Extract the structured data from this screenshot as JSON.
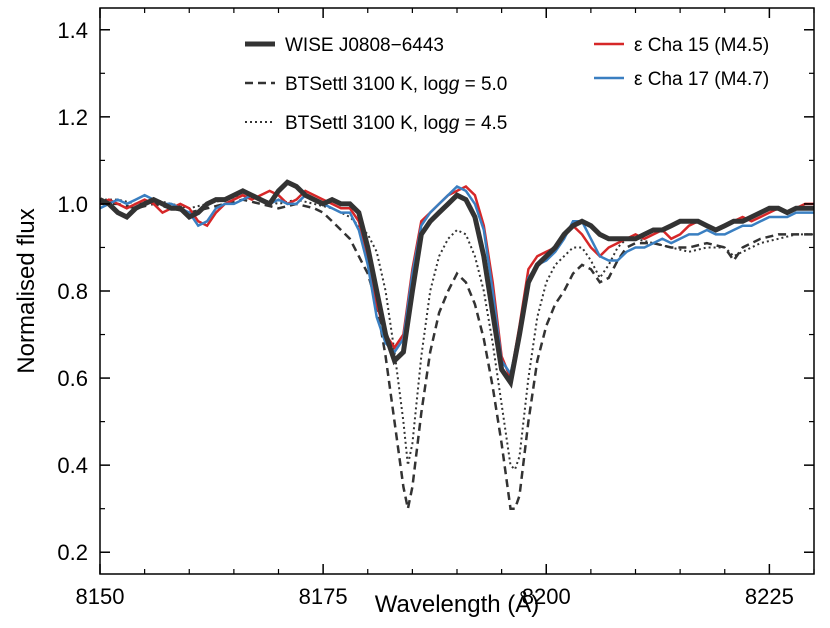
{
  "chart_data": {
    "type": "line",
    "title": "",
    "xlabel": "Wavelength (Å)",
    "ylabel": "Normalised flux",
    "xlim": [
      8150,
      8230
    ],
    "ylim": [
      0.15,
      1.45
    ],
    "xticks": [
      8150,
      8175,
      8200,
      8225
    ],
    "yticks": [
      0.2,
      0.4,
      0.6,
      0.8,
      1.0,
      1.2,
      1.4
    ],
    "xtick_labels": [
      "8150",
      "8175",
      "8200",
      "8225"
    ],
    "ytick_labels": [
      "0.2",
      "0.4",
      "0.6",
      "0.8",
      "1.0",
      "1.2",
      "1.4"
    ],
    "grid": false,
    "legend_placement": "top",
    "series": [
      {
        "name": "WISE J0808−6443",
        "color": "#333333",
        "style": "solid-thick",
        "x": [
          8150,
          8151,
          8152,
          8153,
          8154,
          8155,
          8156,
          8157,
          8158,
          8159,
          8160,
          8161,
          8162,
          8163,
          8164,
          8165,
          8166,
          8167,
          8168,
          8169,
          8170,
          8171,
          8172,
          8173,
          8174,
          8175,
          8176,
          8177,
          8178,
          8179,
          8180,
          8181,
          8182,
          8183,
          8184,
          8185,
          8186,
          8187,
          8188,
          8189,
          8190,
          8191,
          8192,
          8193,
          8194,
          8195,
          8196,
          8197,
          8198,
          8199,
          8200,
          8201,
          8202,
          8203,
          8204,
          8205,
          8206,
          8207,
          8208,
          8209,
          8210,
          8211,
          8212,
          8213,
          8214,
          8215,
          8216,
          8217,
          8218,
          8219,
          8220,
          8221,
          8222,
          8223,
          8224,
          8225,
          8226,
          8227,
          8228,
          8229,
          8230
        ],
        "y": [
          1.01,
          1.0,
          0.98,
          0.97,
          0.99,
          1.0,
          1.01,
          1.0,
          0.99,
          0.99,
          0.97,
          0.98,
          1.0,
          1.01,
          1.01,
          1.02,
          1.03,
          1.02,
          1.01,
          1.0,
          1.03,
          1.05,
          1.04,
          1.02,
          1.01,
          1.0,
          1.01,
          1.0,
          1.0,
          0.98,
          0.9,
          0.8,
          0.7,
          0.64,
          0.66,
          0.8,
          0.93,
          0.96,
          0.98,
          1.0,
          1.02,
          1.01,
          0.97,
          0.88,
          0.75,
          0.62,
          0.59,
          0.7,
          0.82,
          0.86,
          0.88,
          0.9,
          0.93,
          0.95,
          0.96,
          0.95,
          0.93,
          0.92,
          0.92,
          0.92,
          0.92,
          0.93,
          0.94,
          0.94,
          0.95,
          0.96,
          0.96,
          0.96,
          0.95,
          0.94,
          0.95,
          0.96,
          0.96,
          0.97,
          0.98,
          0.99,
          0.99,
          0.98,
          0.99,
          0.99,
          0.99
        ]
      },
      {
        "name": "BTSettl 3100 K, log g = 5.0",
        "color": "#333333",
        "style": "dashed",
        "x": [
          8150,
          8152,
          8154,
          8156,
          8158,
          8160,
          8162,
          8164,
          8166,
          8168,
          8170,
          8172,
          8174,
          8175,
          8176,
          8177,
          8178,
          8179,
          8180,
          8181,
          8182,
          8183,
          8184,
          8184.5,
          8185,
          8186,
          8187,
          8188,
          8189,
          8190,
          8191,
          8192,
          8193,
          8194,
          8195,
          8196,
          8196.5,
          8197,
          8198,
          8199,
          8200,
          8201,
          8202,
          8203,
          8204,
          8205,
          8206,
          8207,
          8208,
          8209,
          8210,
          8212,
          8214,
          8216,
          8218,
          8220,
          8221,
          8222,
          8224,
          8226,
          8228,
          8230
        ],
        "y": [
          1.0,
          1.0,
          0.99,
          1.0,
          0.99,
          0.98,
          0.99,
          1.0,
          1.01,
          1.0,
          0.99,
          1.0,
          0.99,
          0.98,
          0.96,
          0.94,
          0.92,
          0.88,
          0.84,
          0.77,
          0.65,
          0.5,
          0.35,
          0.3,
          0.35,
          0.52,
          0.66,
          0.75,
          0.8,
          0.84,
          0.82,
          0.77,
          0.69,
          0.58,
          0.45,
          0.3,
          0.3,
          0.33,
          0.5,
          0.64,
          0.72,
          0.77,
          0.8,
          0.84,
          0.86,
          0.85,
          0.82,
          0.83,
          0.87,
          0.9,
          0.91,
          0.91,
          0.9,
          0.9,
          0.91,
          0.9,
          0.87,
          0.9,
          0.92,
          0.93,
          0.93,
          0.93
        ]
      },
      {
        "name": "BTSettl 3100 K, log g = 4.5",
        "color": "#333333",
        "style": "dotted",
        "x": [
          8150,
          8152,
          8154,
          8156,
          8158,
          8160,
          8162,
          8164,
          8166,
          8168,
          8170,
          8172,
          8174,
          8176,
          8177,
          8178,
          8179,
          8180,
          8181,
          8182,
          8183,
          8184,
          8184.5,
          8185,
          8186,
          8187,
          8188,
          8189,
          8190,
          8191,
          8192,
          8193,
          8194,
          8195,
          8196,
          8196.5,
          8197,
          8198,
          8199,
          8200,
          8201,
          8202,
          8203,
          8204,
          8205,
          8206,
          8207,
          8208,
          8209,
          8210,
          8212,
          8214,
          8216,
          8218,
          8220,
          8221,
          8222,
          8224,
          8226,
          8228,
          8230
        ],
        "y": [
          1.01,
          1.01,
          1.0,
          1.01,
          1.0,
          0.99,
          1.0,
          1.01,
          1.02,
          1.01,
          1.0,
          1.01,
          1.0,
          0.99,
          0.98,
          0.97,
          0.95,
          0.93,
          0.89,
          0.8,
          0.66,
          0.5,
          0.4,
          0.45,
          0.65,
          0.8,
          0.88,
          0.92,
          0.94,
          0.93,
          0.88,
          0.8,
          0.68,
          0.54,
          0.4,
          0.39,
          0.42,
          0.6,
          0.74,
          0.82,
          0.86,
          0.88,
          0.9,
          0.9,
          0.87,
          0.83,
          0.86,
          0.9,
          0.92,
          0.92,
          0.91,
          0.9,
          0.89,
          0.9,
          0.9,
          0.88,
          0.89,
          0.91,
          0.92,
          0.93,
          0.93
        ]
      },
      {
        "name": "ε Cha 15 (M4.5)",
        "color": "#d62728",
        "style": "solid",
        "x": [
          8150,
          8151,
          8152,
          8153,
          8154,
          8155,
          8156,
          8157,
          8158,
          8159,
          8160,
          8161,
          8162,
          8163,
          8164,
          8165,
          8166,
          8167,
          8168,
          8169,
          8170,
          8171,
          8172,
          8173,
          8174,
          8175,
          8176,
          8177,
          8178,
          8179,
          8180,
          8181,
          8182,
          8183,
          8184,
          8185,
          8186,
          8187,
          8188,
          8189,
          8190,
          8191,
          8192,
          8193,
          8194,
          8195,
          8196,
          8197,
          8198,
          8199,
          8200,
          8201,
          8202,
          8203,
          8204,
          8205,
          8206,
          8207,
          8208,
          8209,
          8210,
          8211,
          8212,
          8213,
          8214,
          8215,
          8216,
          8217,
          8218,
          8219,
          8220,
          8221,
          8222,
          8223,
          8224,
          8225,
          8226,
          8227,
          8228,
          8229,
          8230
        ],
        "y": [
          1.0,
          1.01,
          1.0,
          0.99,
          1.0,
          1.01,
          1.0,
          0.98,
          0.99,
          1.0,
          0.99,
          0.96,
          0.95,
          0.98,
          1.0,
          1.01,
          1.02,
          1.01,
          1.02,
          1.03,
          1.02,
          1.0,
          1.01,
          1.03,
          1.02,
          1.01,
          1.0,
          0.99,
          0.99,
          0.96,
          0.88,
          0.77,
          0.7,
          0.67,
          0.7,
          0.85,
          0.96,
          0.98,
          1.0,
          1.02,
          1.03,
          1.04,
          1.02,
          0.95,
          0.82,
          0.65,
          0.6,
          0.72,
          0.85,
          0.88,
          0.89,
          0.9,
          0.93,
          0.95,
          0.93,
          0.9,
          0.88,
          0.9,
          0.91,
          0.92,
          0.93,
          0.92,
          0.93,
          0.94,
          0.92,
          0.93,
          0.95,
          0.96,
          0.95,
          0.94,
          0.95,
          0.96,
          0.97,
          0.96,
          0.97,
          0.98,
          0.99,
          0.98,
          0.99,
          1.0,
          1.0
        ]
      },
      {
        "name": "ε Cha 17 (M4.7)",
        "color": "#3a7fc1",
        "style": "solid",
        "x": [
          8150,
          8151,
          8152,
          8153,
          8154,
          8155,
          8156,
          8157,
          8158,
          8159,
          8160,
          8161,
          8162,
          8163,
          8164,
          8165,
          8166,
          8167,
          8168,
          8169,
          8170,
          8171,
          8172,
          8173,
          8174,
          8175,
          8176,
          8177,
          8178,
          8179,
          8180,
          8181,
          8182,
          8183,
          8184,
          8185,
          8186,
          8187,
          8188,
          8189,
          8190,
          8191,
          8192,
          8193,
          8194,
          8195,
          8196,
          8197,
          8198,
          8199,
          8200,
          8201,
          8202,
          8203,
          8204,
          8205,
          8206,
          8207,
          8208,
          8209,
          8210,
          8211,
          8212,
          8213,
          8214,
          8215,
          8216,
          8217,
          8218,
          8219,
          8220,
          8221,
          8222,
          8223,
          8224,
          8225,
          8226,
          8227,
          8228,
          8229,
          8230
        ],
        "y": [
          0.99,
          1.0,
          1.01,
          1.0,
          1.01,
          1.02,
          1.01,
          1.0,
          1.0,
          0.99,
          0.98,
          0.95,
          0.96,
          0.99,
          1.0,
          1.0,
          1.01,
          1.02,
          1.01,
          1.0,
          1.01,
          1.0,
          1.0,
          1.02,
          1.01,
          1.0,
          0.99,
          0.98,
          0.98,
          0.94,
          0.86,
          0.74,
          0.68,
          0.66,
          0.69,
          0.84,
          0.95,
          0.98,
          1.0,
          1.02,
          1.04,
          1.03,
          1.0,
          0.94,
          0.8,
          0.64,
          0.61,
          0.7,
          0.83,
          0.86,
          0.87,
          0.89,
          0.92,
          0.96,
          0.96,
          0.92,
          0.88,
          0.87,
          0.87,
          0.89,
          0.9,
          0.9,
          0.91,
          0.92,
          0.91,
          0.92,
          0.93,
          0.93,
          0.94,
          0.93,
          0.93,
          0.94,
          0.95,
          0.95,
          0.96,
          0.97,
          0.97,
          0.97,
          0.98,
          0.98,
          0.98
        ]
      }
    ]
  }
}
